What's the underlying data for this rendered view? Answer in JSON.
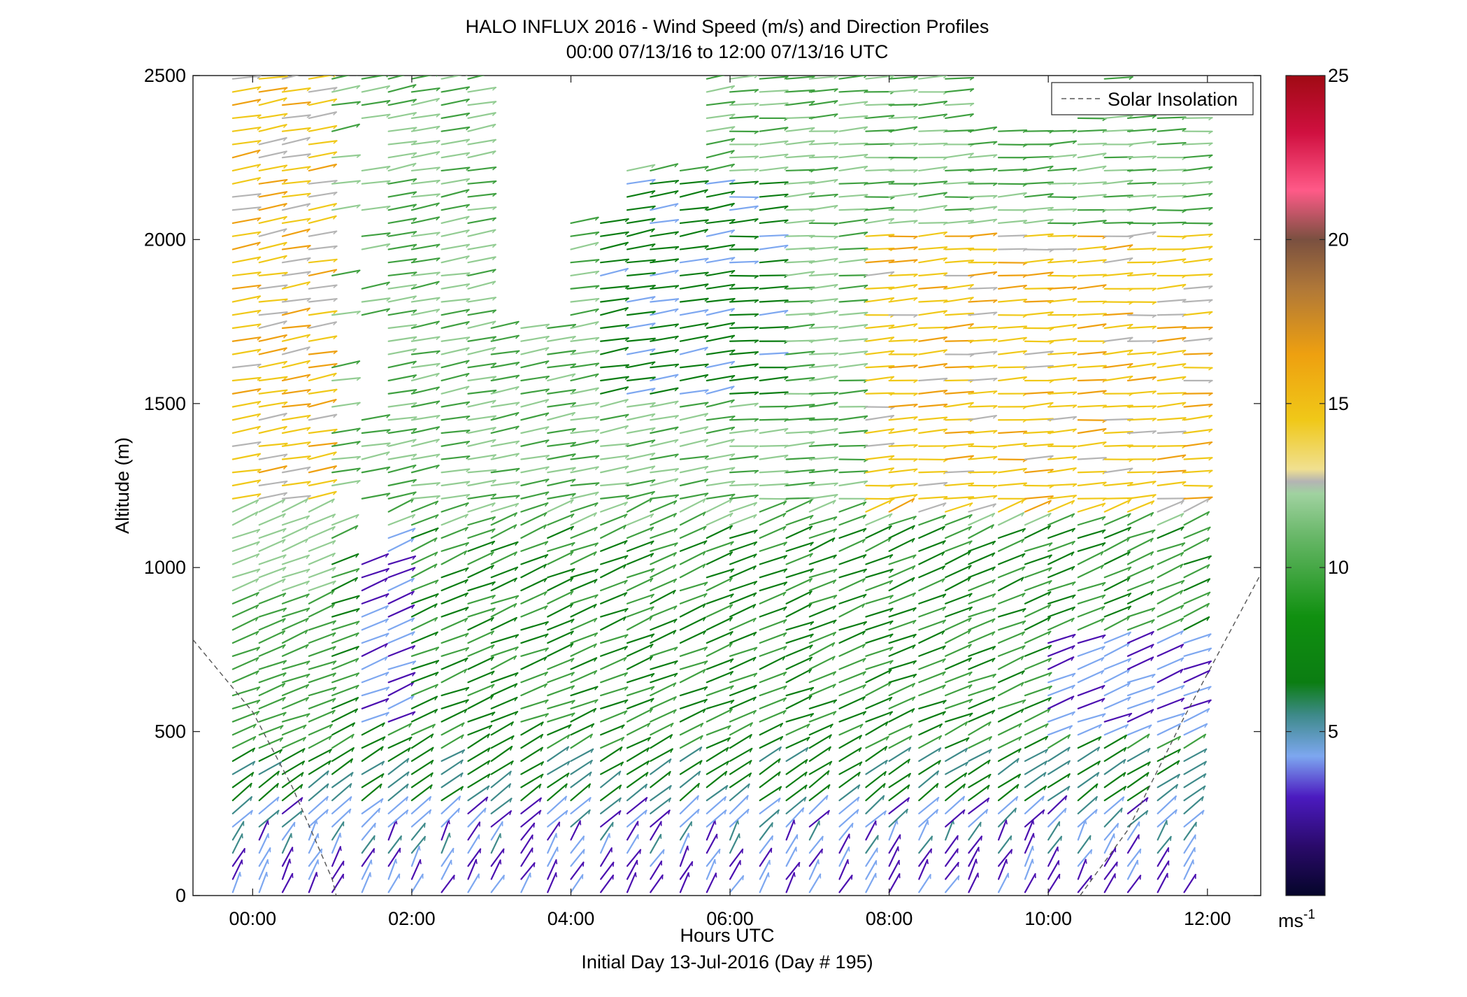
{
  "chart_data": {
    "type": "wind-barb-profile",
    "title": "HALO INFLUX 2016 - Wind Speed (m/s) and Direction Profiles",
    "subtitle": "00:00 07/13/16 to 12:00 07/13/16  UTC",
    "xlabel": "Hours UTC",
    "xlabel2": "Initial Day 13-Jul-2016 (Day # 195)",
    "ylabel": "Altitude (m)",
    "xlim": [
      -0.75,
      12.67
    ],
    "ylim": [
      0,
      2500
    ],
    "xticks": [
      0,
      2,
      4,
      6,
      8,
      10,
      12
    ],
    "xtick_labels": [
      "00:00",
      "02:00",
      "04:00",
      "06:00",
      "08:00",
      "10:00",
      "12:00"
    ],
    "yticks": [
      0,
      500,
      1000,
      1500,
      2000,
      2500
    ],
    "ytick_labels": [
      "0",
      "500",
      "1000",
      "1500",
      "2000",
      "2500"
    ],
    "legend": {
      "position": "top-right",
      "entries": [
        "Solar Insolation"
      ]
    },
    "colorbar": {
      "range": [
        0,
        25
      ],
      "ticks": [
        5,
        10,
        15,
        20,
        25
      ],
      "tick_labels": [
        "5",
        "10",
        "15",
        "20",
        "25"
      ],
      "unit_label": "ms",
      "unit_superscript": "-1"
    },
    "solar_insolation": [
      {
        "x": -0.75,
        "y": 780
      },
      {
        "x": 0.0,
        "y": 560
      },
      {
        "x": 0.5,
        "y": 330
      },
      {
        "x": 1.0,
        "y": 50
      },
      {
        "x": 1.05,
        "y": 0
      }
    ],
    "solar_insolation_evening": [
      {
        "x": 10.4,
        "y": 0
      },
      {
        "x": 11.0,
        "y": 200
      },
      {
        "x": 11.7,
        "y": 540
      },
      {
        "x": 12.67,
        "y": 980
      }
    ],
    "profile_times": [
      -0.25,
      0.083,
      0.375,
      0.708,
      1.0,
      1.375,
      1.708,
      2.0,
      2.375,
      2.708,
      3.0,
      3.375,
      3.708,
      4.0,
      4.375,
      4.708,
      5.0,
      5.375,
      5.708,
      6.0,
      6.375,
      6.708,
      7.0,
      7.375,
      7.708,
      8.0,
      8.375,
      8.708,
      9.0,
      9.375,
      9.708,
      10.0,
      10.375,
      10.708,
      11.0,
      11.375,
      11.708
    ],
    "altitude_step_m": 40,
    "colors": {
      "purple": "#4b0fb0",
      "blue": "#7da7f0",
      "teal": "#3e8a8a",
      "darkgreen": "#0b7d12",
      "green": "#3fa040",
      "lightgreen": "#92cc92",
      "gray": "#b4b4b4",
      "yellow": "#f0c818",
      "orange": "#eea010",
      "red": "#e0202a"
    }
  }
}
